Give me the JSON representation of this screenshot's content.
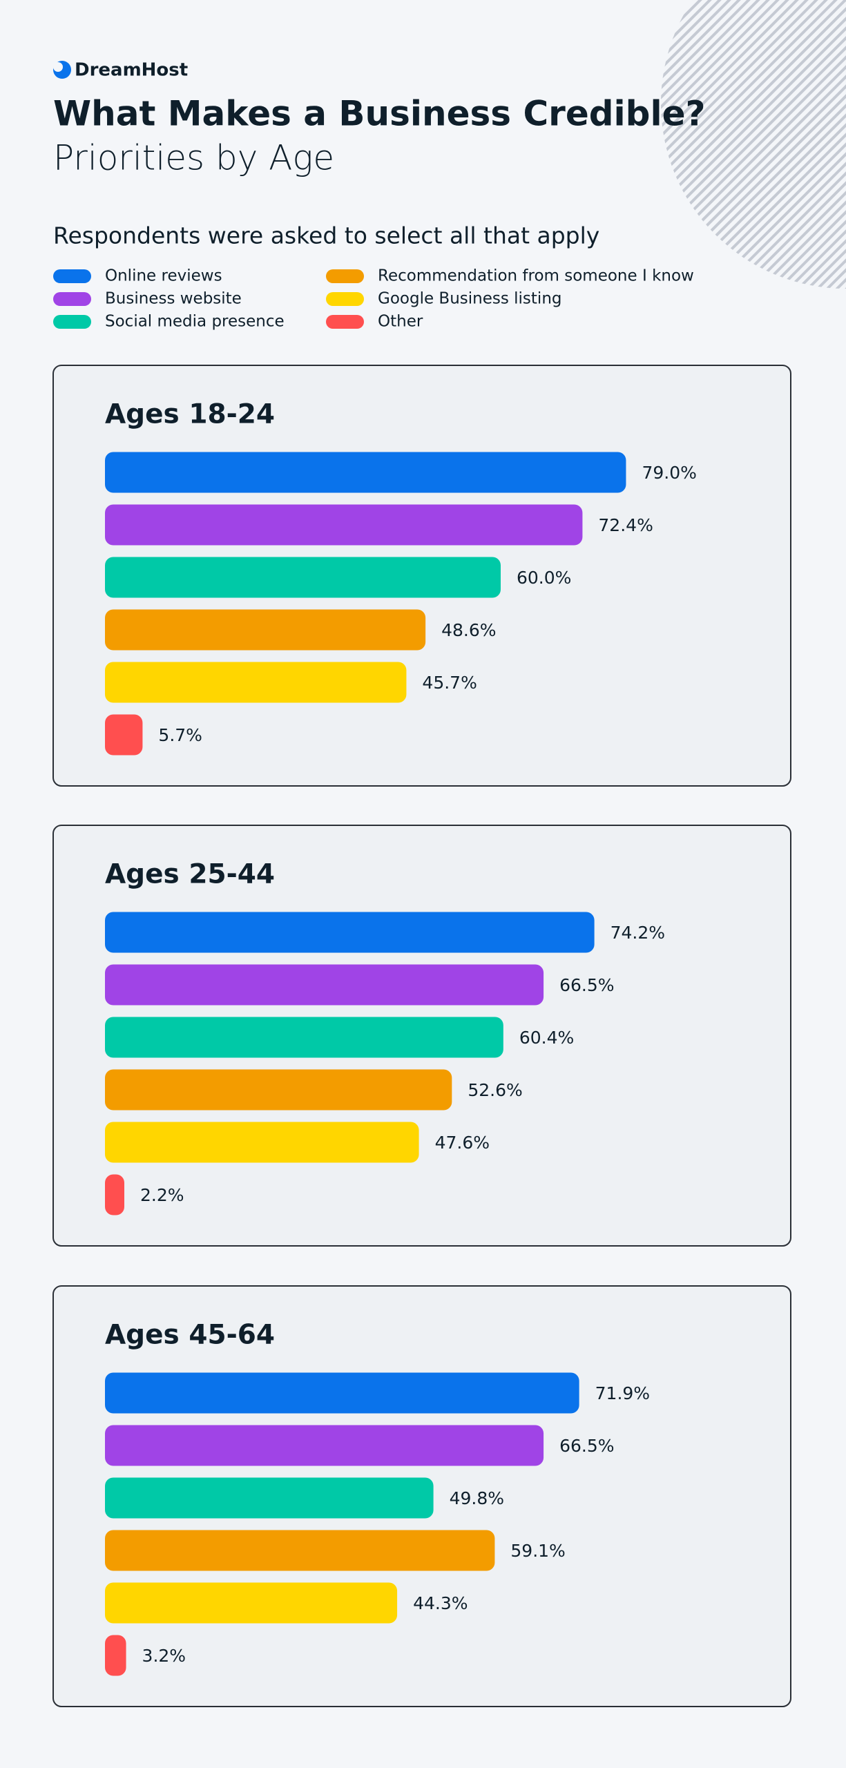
{
  "brand": "DreamHost",
  "title": "What Makes a Business Credible?",
  "subtitle": "Priorities by Age",
  "note": "Respondents were asked to select all that apply",
  "legend": [
    {
      "name": "Online reviews",
      "color": "#0a73eb"
    },
    {
      "name": "Business website",
      "color": "#a044e6"
    },
    {
      "name": "Social media presence",
      "color": "#00c9a7"
    },
    {
      "name": "Recommendation from someone I know",
      "color": "#f39c00"
    },
    {
      "name": "Google Business listing",
      "color": "#ffd600"
    },
    {
      "name": "Other",
      "color": "#ff4f4f"
    }
  ],
  "chart_data": [
    {
      "type": "bar",
      "title": "Ages 18-24",
      "xlim": [
        0,
        100
      ],
      "values": [
        79.0,
        72.4,
        60.0,
        48.6,
        45.7,
        5.7
      ],
      "value_labels": [
        "79.0%",
        "72.4%",
        "60.0%",
        "48.6%",
        "45.7%",
        "5.7%"
      ]
    },
    {
      "type": "bar",
      "title": "Ages 25-44",
      "xlim": [
        0,
        100
      ],
      "values": [
        74.2,
        66.5,
        60.4,
        52.6,
        47.6,
        2.2
      ],
      "value_labels": [
        "74.2%",
        "66.5%",
        "60.4%",
        "52.6%",
        "47.6%",
        "2.2%"
      ]
    },
    {
      "type": "bar",
      "title": "Ages 45-64",
      "xlim": [
        0,
        100
      ],
      "values": [
        71.9,
        66.5,
        49.8,
        59.1,
        44.3,
        3.2
      ],
      "value_labels": [
        "71.9%",
        "66.5%",
        "49.8%",
        "59.1%",
        "44.3%",
        "3.2%"
      ]
    }
  ]
}
